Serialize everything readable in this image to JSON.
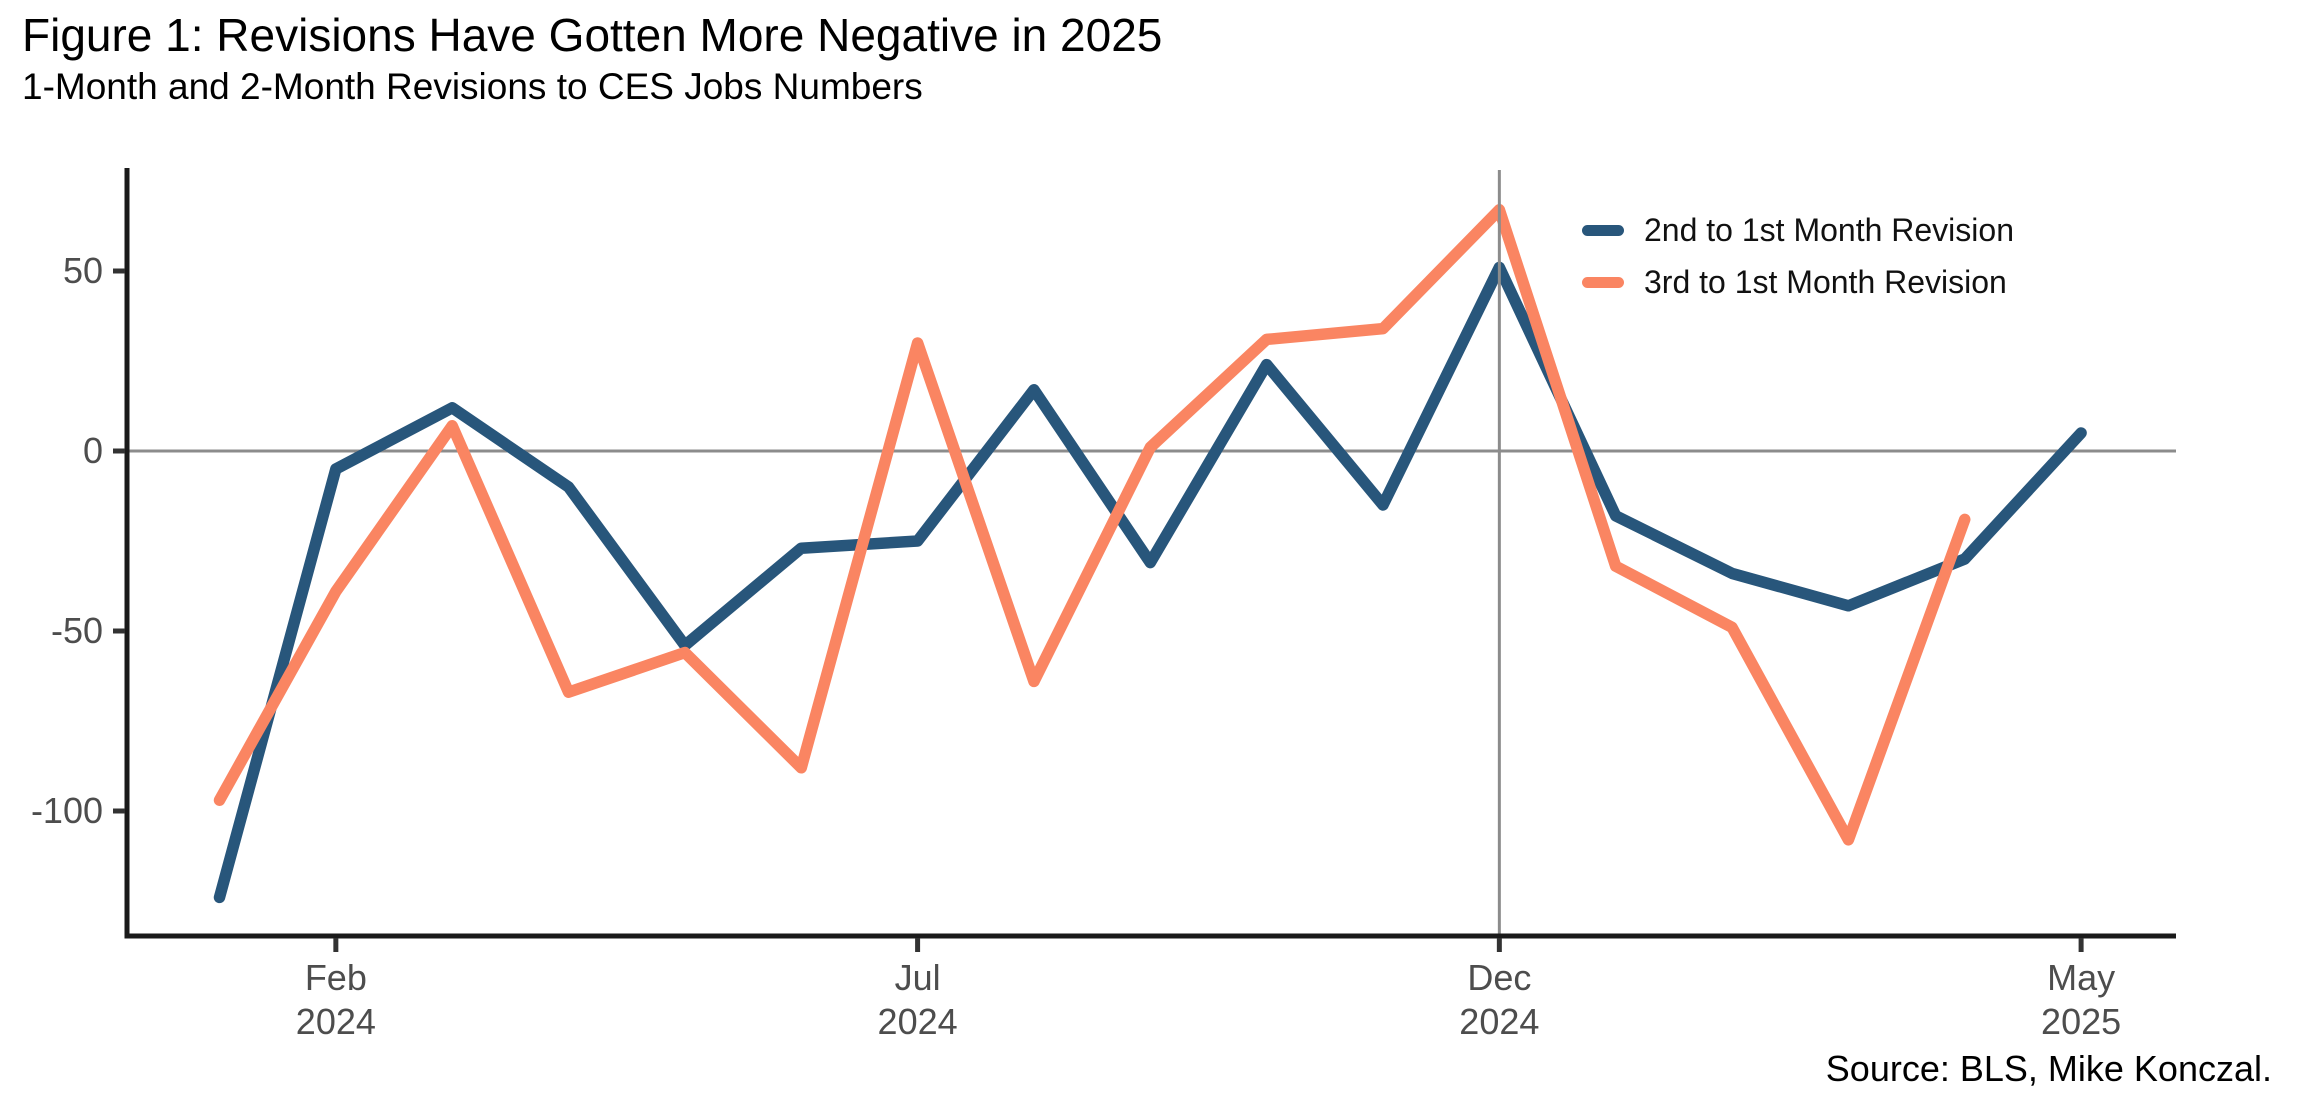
{
  "figure": {
    "title": "Figure 1: Revisions Have Gotten More Negative in 2025",
    "subtitle": "1-Month and 2-Month Revisions to CES Jobs Numbers",
    "source": "Source: BLS, Mike Konczal."
  },
  "colors": {
    "series_blue": "#28567B",
    "series_orange": "#FA8562",
    "axis": "#1A1A1A",
    "gridline": "#8C8C8C",
    "tick_mark": "#333333",
    "tick_label": "#4D4D4D"
  },
  "chart_data": {
    "type": "line",
    "title": "Figure 1: Revisions Have Gotten More Negative in 2025",
    "subtitle": "1-Month and 2-Month Revisions to CES Jobs Numbers",
    "xlabel": "",
    "ylabel": "",
    "x": [
      "Jan 2024",
      "Feb 2024",
      "Mar 2024",
      "Apr 2024",
      "May 2024",
      "Jun 2024",
      "Jul 2024",
      "Aug 2024",
      "Sep 2024",
      "Oct 2024",
      "Nov 2024",
      "Dec 2024",
      "Jan 2025",
      "Feb 2025",
      "Mar 2025",
      "Apr 2025",
      "May 2025"
    ],
    "series": [
      {
        "name": "2nd to 1st Month Revision",
        "color": "#28567B",
        "values": [
          -124,
          -5,
          12,
          -10,
          -54,
          -27,
          -25,
          17,
          -31,
          24,
          -15,
          51,
          -18,
          -34,
          -43,
          -30,
          5
        ]
      },
      {
        "name": "3rd to 1st Month Revision",
        "color": "#FA8562",
        "values": [
          -97,
          -39,
          7,
          -67,
          -56,
          -88,
          30,
          -64,
          1,
          31,
          34,
          67,
          -32,
          -49,
          -108,
          -19,
          null
        ]
      }
    ],
    "y_ticks": [
      50,
      0,
      -50,
      -100
    ],
    "ylim": [
      -135,
      78
    ],
    "x_ticks": [
      {
        "index": 1,
        "line1": "Feb",
        "line2": "2024"
      },
      {
        "index": 6,
        "line1": "Jul",
        "line2": "2024"
      },
      {
        "index": 11,
        "line1": "Dec",
        "line2": "2024"
      },
      {
        "index": 16,
        "line1": "May",
        "line2": "2025"
      }
    ],
    "reference_lines": {
      "horizontal_at_y": 0,
      "vertical_at_x": "Dec 2024"
    },
    "grid": "off-except-reference-lines",
    "legend_position": "top-right-inside"
  }
}
